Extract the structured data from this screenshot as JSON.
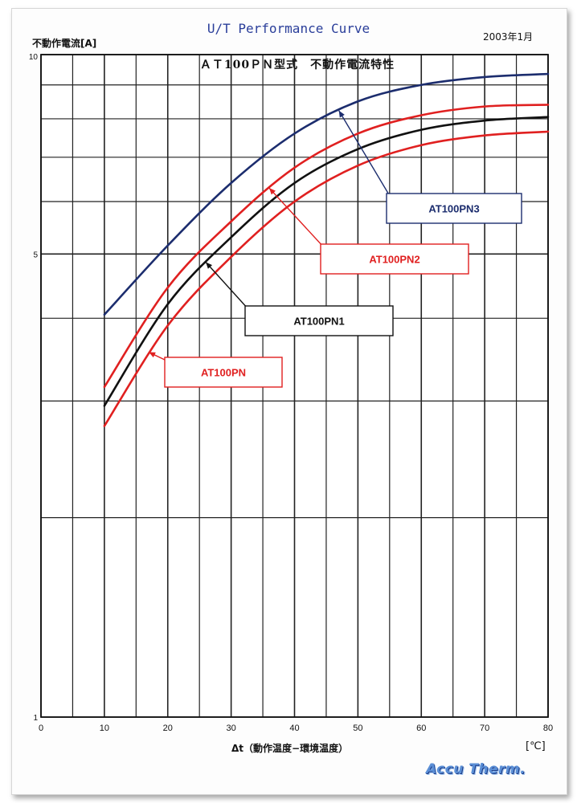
{
  "header": {
    "title": "U/T Performance Curve",
    "date": "2003年1月",
    "logo_text": "Accu Therm."
  },
  "chart_data": {
    "type": "line",
    "title": "ＡＴ100ＰＮ型式　不動作電流特性",
    "xlabel": "Δt（動作温度−環境温度）",
    "ylabel": "不動作電流[A]",
    "x_unit": "[℃]",
    "xlim": [
      0,
      80
    ],
    "ylim": [
      1,
      10
    ],
    "y_scale": "log",
    "x_ticks": [
      "0",
      "10",
      "20",
      "30",
      "40",
      "50",
      "60",
      "70",
      "80"
    ],
    "y_ticks": [
      {
        "value": 1,
        "label": "1"
      },
      {
        "value": 5,
        "label": "5"
      },
      {
        "value": 10,
        "label": "10"
      }
    ],
    "grid": true,
    "series": [
      {
        "name": "AT100PN3",
        "color": "#1c2d6e",
        "x": [
          10,
          20,
          30,
          40,
          50,
          60,
          70,
          80
        ],
        "y": [
          4.05,
          5.15,
          6.4,
          7.6,
          8.5,
          9.0,
          9.25,
          9.35
        ]
      },
      {
        "name": "AT100PN2",
        "color": "#e02020",
        "x": [
          10,
          20,
          30,
          40,
          50,
          60,
          70,
          80
        ],
        "y": [
          3.15,
          4.45,
          5.6,
          6.75,
          7.6,
          8.1,
          8.35,
          8.4
        ]
      },
      {
        "name": "AT100PN1",
        "color": "#111111",
        "x": [
          10,
          20,
          30,
          40,
          50,
          60,
          70,
          80
        ],
        "y": [
          2.95,
          4.2,
          5.3,
          6.4,
          7.2,
          7.7,
          7.95,
          8.05
        ]
      },
      {
        "name": "AT100PN",
        "color": "#e02020",
        "x": [
          10,
          20,
          30,
          40,
          50,
          60,
          70,
          80
        ],
        "y": [
          2.75,
          3.9,
          4.95,
          6.0,
          6.8,
          7.3,
          7.55,
          7.65
        ]
      }
    ],
    "annotations": [
      {
        "label": "AT100PN3",
        "series": "AT100PN3",
        "text_color": "#1c2d6e",
        "arrow_color": "#1c2d6e",
        "at_x": 47
      },
      {
        "label": "AT100PN2",
        "series": "AT100PN2",
        "text_color": "#e02020",
        "arrow_color": "#e02020",
        "at_x": 36
      },
      {
        "label": "AT100PN1",
        "series": "AT100PN1",
        "text_color": "#111111",
        "arrow_color": "#111111",
        "at_x": 26
      },
      {
        "label": "AT100PN",
        "series": "AT100PN",
        "text_color": "#e02020",
        "arrow_color": "#e02020",
        "at_x": 17
      }
    ]
  }
}
